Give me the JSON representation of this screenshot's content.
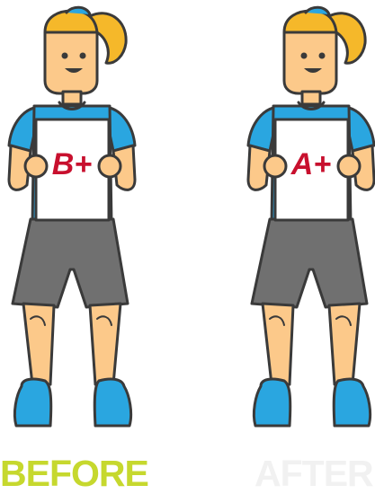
{
  "panels": [
    {
      "grade": "B+",
      "caption": "BEFORE"
    },
    {
      "grade": "A+",
      "caption": "AFTER"
    }
  ],
  "colors": {
    "skin": "#fcc98a",
    "hair": "#f5b82a",
    "shirt": "#2aa6e0",
    "shorts": "#707070",
    "shoe": "#2aa6e0",
    "outline": "#3a3a3a",
    "grade_ink": "#c8102e",
    "caption_before": "#c6d82e",
    "caption_after": "#f1f1f1"
  }
}
